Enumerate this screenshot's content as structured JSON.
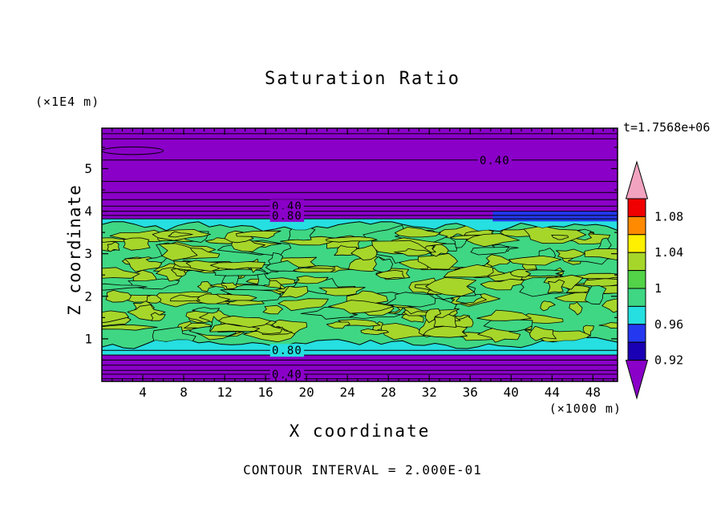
{
  "title": "Saturation Ratio",
  "annotations": {
    "time_label": "t=1.7568e+06",
    "contour_interval_label": "CONTOUR INTERVAL = 2.000E-01"
  },
  "x_axis": {
    "label": "X coordinate",
    "unit": "(×1000 m)",
    "ticks": [
      4,
      8,
      12,
      16,
      20,
      24,
      28,
      32,
      36,
      40,
      44,
      48
    ]
  },
  "y_axis": {
    "label": "Z coordinate",
    "unit": "(×1E4 m)",
    "ticks": [
      1,
      2,
      3,
      4,
      5
    ]
  },
  "colorbar": {
    "labels": [
      "1.08",
      "1.04",
      "1",
      "0.96",
      "0.92"
    ],
    "segments": [
      "#F00000",
      "#FF8A00",
      "#FFF000",
      "#A6D62A",
      "#52D348",
      "#3FD783",
      "#25DFE0",
      "#2438F0",
      "#1A00B4"
    ],
    "arrow_top_color": "#F2A3C0",
    "arrow_bottom_color": "#8A00C8"
  },
  "chart_data": {
    "type": "heatmap",
    "title": "Saturation Ratio",
    "xlabel": "X coordinate (×1000 m)",
    "ylabel": "Z coordinate (×1E4 m)",
    "xlim": [
      0,
      50.4
    ],
    "ylim": [
      0,
      5.95
    ],
    "time": "t=1.7568e+06",
    "contour_interval": 0.2,
    "legend_position": "right",
    "grid": false,
    "colors": {
      "purple": "#8A00C8",
      "cyan": "#25DFE0",
      "green": "#3FD783",
      "yellow_green": "#A6D62A",
      "blue": "#2438F0"
    },
    "bands": [
      {
        "name": "top-undersaturated",
        "color": "purple",
        "y_from": 3.82,
        "y_to": 5.95,
        "approx_value": "< 0.92"
      },
      {
        "name": "top-transition",
        "color": "cyan",
        "y_from": 3.4,
        "y_to": 3.82,
        "approx_value": "0.96-0.98"
      },
      {
        "name": "core-saturated",
        "color": "green",
        "y_from": 0.9,
        "y_to": 3.62,
        "approx_value": "0.98-1.02",
        "speckle_color": "yellow_green"
      },
      {
        "name": "bottom-transition",
        "color": "cyan",
        "y_from": 0.62,
        "y_to": 1.06,
        "approx_value": "0.96-0.98"
      },
      {
        "name": "bottom-undersaturated",
        "color": "purple",
        "y_from": 0,
        "y_to": 0.62,
        "approx_value": "< 0.92"
      }
    ],
    "blue_patch": {
      "x_from": 38.2,
      "x_to": 50.4,
      "y_from": 3.76,
      "y_to": 4.0,
      "color": "blue"
    },
    "contour_lines_y": [
      5.82,
      5.7,
      5.2,
      4.7,
      4.44,
      4.27,
      4.12,
      4.0,
      3.9,
      3.82,
      0.73,
      0.62,
      0.5,
      0.38,
      0.26,
      0.17,
      0.06
    ],
    "closed_contour": {
      "cx": 3.0,
      "cy": 5.42,
      "rx": 3.0,
      "ry": 0.09
    },
    "contour_labels": [
      {
        "text": "0.40",
        "x": 38.4,
        "y": 5.2,
        "bg": "purple"
      },
      {
        "text": "0.40",
        "x": 18.1,
        "y": 4.12,
        "bg": "purple"
      },
      {
        "text": "0.80",
        "x": 18.1,
        "y": 3.9,
        "bg": "purple"
      },
      {
        "text": "0.80",
        "x": 18.1,
        "y": 0.73,
        "bg": "cyan"
      },
      {
        "text": "0.40",
        "x": 18.1,
        "y": 0.17,
        "bg": "purple"
      }
    ]
  }
}
